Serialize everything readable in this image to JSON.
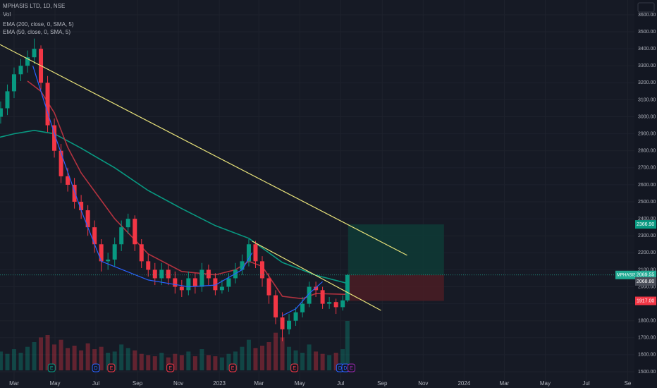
{
  "chart_data": {
    "type": "candlestick",
    "title": "MPHASIS LTD, 1D, NSE",
    "volume_label": "Vol",
    "up_color": "#089981",
    "down_color": "#f23645",
    "grid": true,
    "xlim": [
      -21,
      925
    ],
    "ylim": [
      1446,
      3687
    ],
    "vlim": [
      0,
      6
    ],
    "xticks": [
      {
        "value": 0,
        "label": "Mar"
      },
      {
        "value": 61,
        "label": "May"
      },
      {
        "value": 122,
        "label": "Jul"
      },
      {
        "value": 184,
        "label": "Sep"
      },
      {
        "value": 245,
        "label": "Nov"
      },
      {
        "value": 306,
        "label": "2023"
      },
      {
        "value": 365,
        "label": "Mar"
      },
      {
        "value": 426,
        "label": "May"
      },
      {
        "value": 487,
        "label": "Jul"
      },
      {
        "value": 549,
        "label": "Sep"
      },
      {
        "value": 610,
        "label": "Nov"
      },
      {
        "value": 671,
        "label": "2024"
      },
      {
        "value": 731,
        "label": "Mar"
      },
      {
        "value": 792,
        "label": "May"
      },
      {
        "value": 853,
        "label": "Jul"
      },
      {
        "value": 915,
        "label": "Se"
      }
    ],
    "yticks": [
      {
        "value": 1500,
        "label": "1500.00"
      },
      {
        "value": 1600,
        "label": "1600.00"
      },
      {
        "value": 1700,
        "label": "1700.00"
      },
      {
        "value": 1800,
        "label": "1800.00"
      },
      {
        "value": 1900,
        "label": "1900.00"
      },
      {
        "value": 2000,
        "label": "2000.00"
      },
      {
        "value": 2100,
        "label": "2100.00"
      },
      {
        "value": 2200,
        "label": "2200.00"
      },
      {
        "value": 2300,
        "label": "2300.00"
      },
      {
        "value": 2400,
        "label": "2400.00"
      },
      {
        "value": 2500,
        "label": "2500.00"
      },
      {
        "value": 2600,
        "label": "2600.00"
      },
      {
        "value": 2700,
        "label": "2700.00"
      },
      {
        "value": 2800,
        "label": "2800.00"
      },
      {
        "value": 2900,
        "label": "2900.00"
      },
      {
        "value": 3000,
        "label": "3000.00"
      },
      {
        "value": 3100,
        "label": "3100.00"
      },
      {
        "value": 3200,
        "label": "3200.00"
      },
      {
        "value": 3300,
        "label": "3300.00"
      },
      {
        "value": 3400,
        "label": "3400.00"
      },
      {
        "value": 3500,
        "label": "3500.00"
      },
      {
        "value": 3600,
        "label": "3600.00"
      }
    ],
    "x": [
      -20,
      -10,
      0,
      10,
      20,
      30,
      40,
      50,
      60,
      70,
      80,
      90,
      100,
      110,
      120,
      130,
      140,
      150,
      160,
      170,
      180,
      190,
      200,
      210,
      220,
      230,
      240,
      250,
      260,
      270,
      280,
      290,
      300,
      310,
      320,
      330,
      340,
      350,
      360,
      370,
      380,
      390,
      400,
      410,
      420,
      430,
      440,
      450,
      460,
      470,
      480,
      490,
      497
    ],
    "open": [
      3000,
      3050,
      3150,
      3250,
      3300,
      3350,
      3400,
      3200,
      2950,
      2800,
      2650,
      2600,
      2500,
      2450,
      2350,
      2250,
      2150,
      2160,
      2250,
      2350,
      2400,
      2250,
      2150,
      2100,
      2050,
      2100,
      2050,
      2000,
      1980,
      2050,
      2000,
      2100,
      2050,
      1980,
      2000,
      2050,
      2100,
      2150,
      2250,
      2150,
      2050,
      1950,
      1820,
      1750,
      1800,
      1850,
      1900,
      2000,
      1980,
      1900,
      1910,
      1880,
      1920
    ],
    "high": [
      3090,
      3190,
      3290,
      3340,
      3390,
      3460,
      3420,
      3240,
      2990,
      2840,
      2700,
      2640,
      2540,
      2480,
      2390,
      2280,
      2200,
      2290,
      2390,
      2430,
      2420,
      2280,
      2190,
      2140,
      2140,
      2130,
      2090,
      2040,
      2090,
      2080,
      2140,
      2130,
      2080,
      2040,
      2080,
      2140,
      2190,
      2280,
      2270,
      2180,
      2080,
      1980,
      1850,
      1840,
      1880,
      1940,
      2030,
      2030,
      2000,
      1940,
      1930,
      1950,
      2075
    ],
    "low": [
      2960,
      3010,
      3110,
      3210,
      3260,
      3310,
      3160,
      2910,
      2760,
      2610,
      2560,
      2460,
      2400,
      2300,
      2200,
      2090,
      2100,
      2120,
      2210,
      2310,
      2210,
      2110,
      2060,
      2010,
      2010,
      2010,
      1960,
      1940,
      1950,
      1960,
      1970,
      2010,
      1950,
      1960,
      1970,
      2020,
      2070,
      2120,
      2110,
      2000,
      1900,
      1780,
      1680,
      1720,
      1770,
      1820,
      1880,
      1940,
      1870,
      1870,
      1840,
      1860,
      1910
    ],
    "close": [
      3050,
      3150,
      3250,
      3300,
      3350,
      3400,
      3200,
      2950,
      2800,
      2650,
      2600,
      2500,
      2450,
      2350,
      2250,
      2150,
      2160,
      2250,
      2350,
      2400,
      2250,
      2150,
      2100,
      2050,
      2100,
      2050,
      2000,
      1980,
      2050,
      2000,
      2100,
      2050,
      1980,
      2000,
      2050,
      2100,
      2150,
      2250,
      2150,
      2050,
      1950,
      1820,
      1750,
      1800,
      1850,
      1900,
      2000,
      1980,
      1900,
      1910,
      1880,
      1920,
      2069.55
    ],
    "volume": [
      1.6,
      1.4,
      1.8,
      1.5,
      2.0,
      2.4,
      2.8,
      3.0,
      2.2,
      2.6,
      1.9,
      2.1,
      1.7,
      2.3,
      1.8,
      2.0,
      1.5,
      1.6,
      2.2,
      1.9,
      1.7,
      1.4,
      1.3,
      1.2,
      1.5,
      1.1,
      1.4,
      1.3,
      1.6,
      1.2,
      1.8,
      1.3,
      1.2,
      1.1,
      1.4,
      1.6,
      2.0,
      2.6,
      1.9,
      2.1,
      2.4,
      3.2,
      2.8,
      2.0,
      1.7,
      1.5,
      2.2,
      1.6,
      1.4,
      1.3,
      1.5,
      1.8,
      4.2
    ],
    "series": [
      {
        "name": "EMA (200, close, 0, SMA, 5)",
        "color": "#089981",
        "x": [
          -21,
          0,
          30,
          60,
          100,
          150,
          200,
          250,
          300,
          350,
          400,
          450,
          497
        ],
        "values": [
          2880,
          2900,
          2920,
          2900,
          2815,
          2700,
          2566,
          2460,
          2360,
          2285,
          2143,
          2068,
          2020
        ]
      },
      {
        "name": "EMA (50, close, 0, SMA, 5)",
        "color": "#b2323f",
        "x": [
          20,
          40,
          60,
          80,
          100,
          150,
          200,
          250,
          300,
          330,
          350,
          370,
          400,
          430,
          450,
          497
        ],
        "values": [
          3210,
          3150,
          3023,
          2820,
          2670,
          2400,
          2193,
          2090,
          2070,
          2100,
          2150,
          2120,
          1944,
          1930,
          1960,
          1955
        ]
      }
    ],
    "drawings": [
      {
        "type": "curve",
        "color": "#2962ff",
        "x": [
          28,
          60,
          100,
          130,
          200,
          260,
          300,
          340,
          355
        ],
        "values": [
          3300,
          2900,
          2450,
          2150,
          2040,
          2000,
          2010,
          2100,
          2200
        ]
      },
      {
        "type": "curve",
        "color": "#2962ff",
        "x": [
          400,
          420,
          440,
          460
        ],
        "values": [
          1830,
          1870,
          1960,
          2030
        ]
      },
      {
        "type": "line",
        "color": "#e8e27a",
        "x": [
          -21,
          586
        ],
        "values": [
          3425,
          2185
        ]
      },
      {
        "type": "line",
        "color": "#e8e27a",
        "x": [
          355,
          547
        ],
        "values": [
          2268,
          1861
        ]
      }
    ],
    "position": {
      "x": [
        498,
        641
      ],
      "target": 2366.9,
      "entry": 2069.55,
      "stop": 1917,
      "profit_color": "#0e3b36",
      "loss_color": "#4a1d25"
    },
    "price_tags": [
      {
        "value": 2366.9,
        "label": "2366.90",
        "color": "#089981"
      },
      {
        "value": 2069.55,
        "label": "2069.55",
        "symbol": "MPHASIS",
        "color": "#22ab94"
      },
      {
        "value": 2068.8,
        "label": "2068.80",
        "color": "#4a4e59"
      },
      {
        "value": 1917,
        "label": "1917.00",
        "color": "#f23645"
      }
    ],
    "events": [
      {
        "x": 56,
        "label": "E",
        "color": "#089981"
      },
      {
        "x": 122,
        "label": "D",
        "color": "#2962ff"
      },
      {
        "x": 145,
        "label": "E",
        "color": "#f23645"
      },
      {
        "x": 233,
        "label": "E",
        "color": "#f23645"
      },
      {
        "x": 326,
        "label": "E",
        "color": "#f23645"
      },
      {
        "x": 418,
        "label": "E",
        "color": "#f23645"
      },
      {
        "x": 486,
        "label": "D",
        "color": "#2962ff"
      },
      {
        "x": 494,
        "label": "D",
        "color": "#2962ff"
      },
      {
        "x": 503,
        "label": "E",
        "color": "#9c27b0"
      }
    ]
  }
}
